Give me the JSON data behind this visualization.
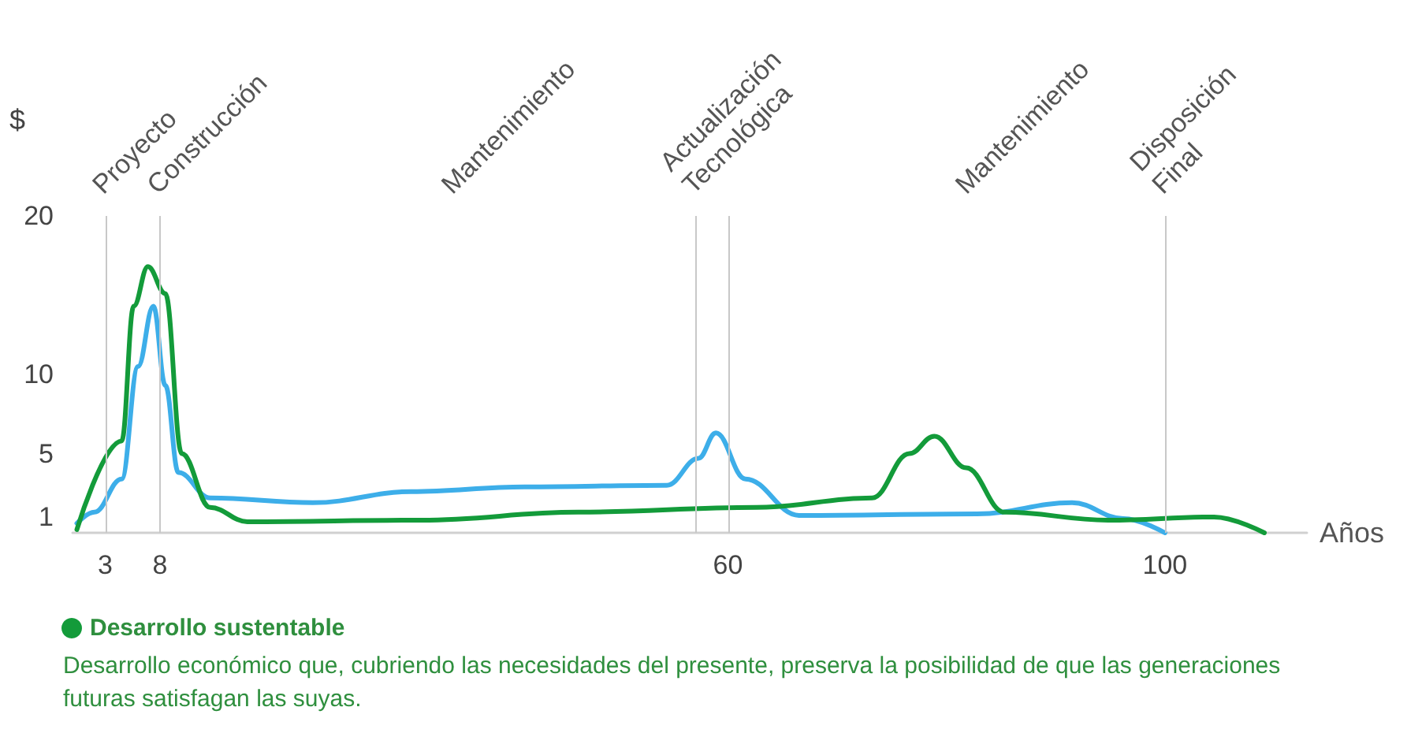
{
  "chart_data": {
    "type": "line",
    "xlabel": "Años",
    "ylabel": "$",
    "xlim": [
      0,
      113
    ],
    "xticks": [
      3,
      8,
      60,
      100
    ],
    "ylim": [
      0,
      20
    ],
    "yticks": [
      1,
      5,
      10,
      20
    ],
    "grid": false,
    "legend": "bottom",
    "line_style": "solid",
    "series": [
      {
        "color": "#3daee9",
        "x": [
          0.4,
          2,
          4.5,
          6,
          7.4,
          8.5,
          9.7,
          12.6,
          22,
          31,
          41.4,
          54.4,
          57.3,
          58.9,
          61.6,
          66.5,
          82.8,
          91.5,
          96.2,
          100
        ],
        "values": [
          0.6,
          1.3,
          3.4,
          10.5,
          14.3,
          9.3,
          3.8,
          2.2,
          1.9,
          2.6,
          2.9,
          3,
          4.7,
          6.3,
          3.4,
          1.1,
          1.2,
          1.9,
          0.9,
          0
        ]
      },
      {
        "name": "Desarrollo sustentable",
        "color": "#139b3a",
        "x": [
          0.4,
          4.5,
          5.6,
          6.9,
          8.5,
          10,
          12.6,
          16,
          31.9,
          46.3,
          62.6,
          73.2,
          76.6,
          78.9,
          81.8,
          85.3,
          94.8,
          104.5,
          109.1
        ],
        "values": [
          0.2,
          5.8,
          14.3,
          16.8,
          15.1,
          5,
          1.6,
          0.7,
          0.8,
          1.3,
          1.6,
          2.2,
          5,
          6.1,
          4.1,
          1.3,
          0.8,
          1,
          0
        ]
      }
    ],
    "ref_lines": [
      {
        "axis": "x",
        "value": 3,
        "label": "Proyecto"
      },
      {
        "axis": "x",
        "value": 8,
        "label": "Construcción"
      },
      {
        "axis": "x",
        "value": 57,
        "label": "Actualización Tecnológica"
      },
      {
        "axis": "x",
        "value": 60
      },
      {
        "axis": "x",
        "value": 100,
        "label": "Disposición Final"
      }
    ],
    "annotations": [
      "Mantenimiento",
      "Mantenimiento",
      "Desarrollo económico que, cubriendo las necesidades del presente, preserva la posibilidad de que las generaciones futuras satisfagan las suyas."
    ]
  }
}
